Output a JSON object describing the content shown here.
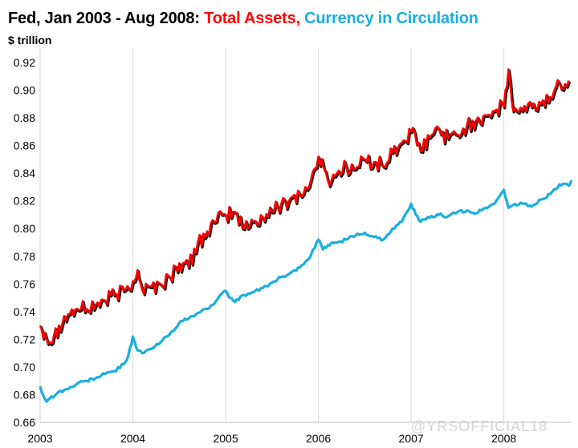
{
  "chart_data": {
    "type": "line",
    "title_parts": {
      "prefix": "Fed, Jan 2003 - Aug 2008: ",
      "series1": "Total Assets,",
      "series2": " Currency in Circulation"
    },
    "ylabel": "$ trillion",
    "ylim": [
      0.66,
      0.92
    ],
    "yticks": [
      "0.66",
      "0.68",
      "0.70",
      "0.72",
      "0.74",
      "0.76",
      "0.78",
      "0.80",
      "0.82",
      "0.84",
      "0.86",
      "0.88",
      "0.90",
      "0.92"
    ],
    "xlim": [
      2003.0,
      2008.73
    ],
    "xticks": [
      "2003",
      "2004",
      "2005",
      "2006",
      "2007",
      "2008"
    ],
    "grid": true,
    "colors": {
      "total_assets": "#ff0000",
      "shadow": "#111111",
      "currency": "#1aaee0",
      "grid": "#d9d9d9"
    },
    "series": [
      {
        "name": "Total Assets",
        "x": [
          2003.0,
          2003.05,
          2003.1,
          2003.15,
          2003.2,
          2003.3,
          2003.4,
          2003.5,
          2003.6,
          2003.7,
          2003.8,
          2003.9,
          2004.0,
          2004.05,
          2004.1,
          2004.2,
          2004.3,
          2004.4,
          2004.5,
          2004.6,
          2004.7,
          2004.8,
          2004.9,
          2005.0,
          2005.1,
          2005.2,
          2005.3,
          2005.4,
          2005.5,
          2005.6,
          2005.7,
          2005.8,
          2005.9,
          2006.0,
          2006.1,
          2006.2,
          2006.3,
          2006.4,
          2006.5,
          2006.6,
          2006.7,
          2006.8,
          2006.9,
          2007.0,
          2007.1,
          2007.2,
          2007.3,
          2007.4,
          2007.5,
          2007.6,
          2007.7,
          2007.8,
          2007.9,
          2008.0,
          2008.05,
          2008.1,
          2008.2,
          2008.3,
          2008.4,
          2008.5,
          2008.6,
          2008.7
        ],
        "values": [
          0.73,
          0.725,
          0.718,
          0.723,
          0.73,
          0.738,
          0.742,
          0.742,
          0.745,
          0.748,
          0.752,
          0.755,
          0.762,
          0.77,
          0.756,
          0.758,
          0.76,
          0.765,
          0.775,
          0.772,
          0.79,
          0.798,
          0.805,
          0.81,
          0.812,
          0.8,
          0.805,
          0.808,
          0.812,
          0.818,
          0.822,
          0.825,
          0.83,
          0.852,
          0.835,
          0.84,
          0.845,
          0.843,
          0.85,
          0.848,
          0.845,
          0.855,
          0.862,
          0.87,
          0.856,
          0.866,
          0.872,
          0.865,
          0.868,
          0.874,
          0.878,
          0.882,
          0.885,
          0.888,
          0.915,
          0.885,
          0.885,
          0.888,
          0.89,
          0.895,
          0.905,
          0.907
        ]
      },
      {
        "name": "Currency in Circulation",
        "x": [
          2003.0,
          2003.03,
          2003.07,
          2003.1,
          2003.2,
          2003.3,
          2003.4,
          2003.5,
          2003.6,
          2003.7,
          2003.8,
          2003.9,
          2003.95,
          2004.0,
          2004.05,
          2004.1,
          2004.2,
          2004.3,
          2004.4,
          2004.5,
          2004.6,
          2004.7,
          2004.8,
          2004.9,
          2005.0,
          2005.05,
          2005.1,
          2005.2,
          2005.3,
          2005.4,
          2005.5,
          2005.6,
          2005.7,
          2005.8,
          2005.9,
          2006.0,
          2006.05,
          2006.1,
          2006.2,
          2006.3,
          2006.4,
          2006.5,
          2006.6,
          2006.7,
          2006.8,
          2006.9,
          2007.0,
          2007.05,
          2007.1,
          2007.2,
          2007.3,
          2007.4,
          2007.5,
          2007.6,
          2007.7,
          2007.8,
          2007.9,
          2008.0,
          2008.05,
          2008.1,
          2008.2,
          2008.3,
          2008.4,
          2008.5,
          2008.6,
          2008.7,
          2008.73
        ],
        "values": [
          0.686,
          0.68,
          0.675,
          0.677,
          0.682,
          0.684,
          0.688,
          0.69,
          0.692,
          0.695,
          0.697,
          0.702,
          0.708,
          0.722,
          0.712,
          0.71,
          0.713,
          0.718,
          0.724,
          0.732,
          0.735,
          0.739,
          0.742,
          0.748,
          0.755,
          0.75,
          0.747,
          0.752,
          0.754,
          0.757,
          0.761,
          0.765,
          0.768,
          0.772,
          0.778,
          0.792,
          0.785,
          0.788,
          0.79,
          0.792,
          0.795,
          0.797,
          0.794,
          0.792,
          0.8,
          0.805,
          0.818,
          0.81,
          0.805,
          0.808,
          0.81,
          0.809,
          0.812,
          0.813,
          0.811,
          0.815,
          0.818,
          0.828,
          0.815,
          0.817,
          0.818,
          0.816,
          0.821,
          0.825,
          0.832,
          0.831,
          0.835
        ]
      }
    ]
  },
  "watermark": "@YRSOFFICIAL18"
}
